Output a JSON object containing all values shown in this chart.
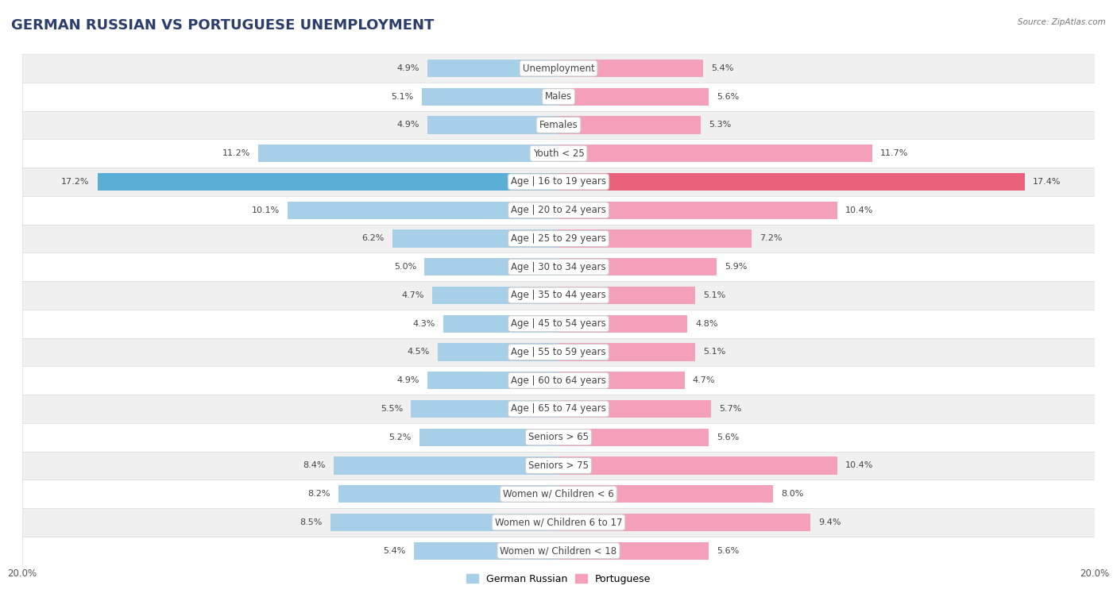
{
  "title": "GERMAN RUSSIAN VS PORTUGUESE UNEMPLOYMENT",
  "source": "Source: ZipAtlas.com",
  "categories": [
    "Unemployment",
    "Males",
    "Females",
    "Youth < 25",
    "Age | 16 to 19 years",
    "Age | 20 to 24 years",
    "Age | 25 to 29 years",
    "Age | 30 to 34 years",
    "Age | 35 to 44 years",
    "Age | 45 to 54 years",
    "Age | 55 to 59 years",
    "Age | 60 to 64 years",
    "Age | 65 to 74 years",
    "Seniors > 65",
    "Seniors > 75",
    "Women w/ Children < 6",
    "Women w/ Children 6 to 17",
    "Women w/ Children < 18"
  ],
  "left_values": [
    4.9,
    5.1,
    4.9,
    11.2,
    17.2,
    10.1,
    6.2,
    5.0,
    4.7,
    4.3,
    4.5,
    4.9,
    5.5,
    5.2,
    8.4,
    8.2,
    8.5,
    5.4
  ],
  "right_values": [
    5.4,
    5.6,
    5.3,
    11.7,
    17.4,
    10.4,
    7.2,
    5.9,
    5.1,
    4.8,
    5.1,
    4.7,
    5.7,
    5.6,
    10.4,
    8.0,
    9.4,
    5.6
  ],
  "left_color": "#a8cfe8",
  "right_color": "#f4a0bb",
  "highlight_left_color": "#5bafd6",
  "highlight_right_color": "#e8607a",
  "highlight_rows": [
    4
  ],
  "axis_max": 20.0,
  "legend_left": "German Russian",
  "legend_right": "Portuguese",
  "bg_color": "#ffffff",
  "row_bg_color": "#f0f0f0",
  "row_white_color": "#ffffff",
  "row_border_color": "#dddddd",
  "title_fontsize": 13,
  "label_fontsize": 8.5,
  "value_fontsize": 8.0,
  "title_color": "#2c3e6b"
}
